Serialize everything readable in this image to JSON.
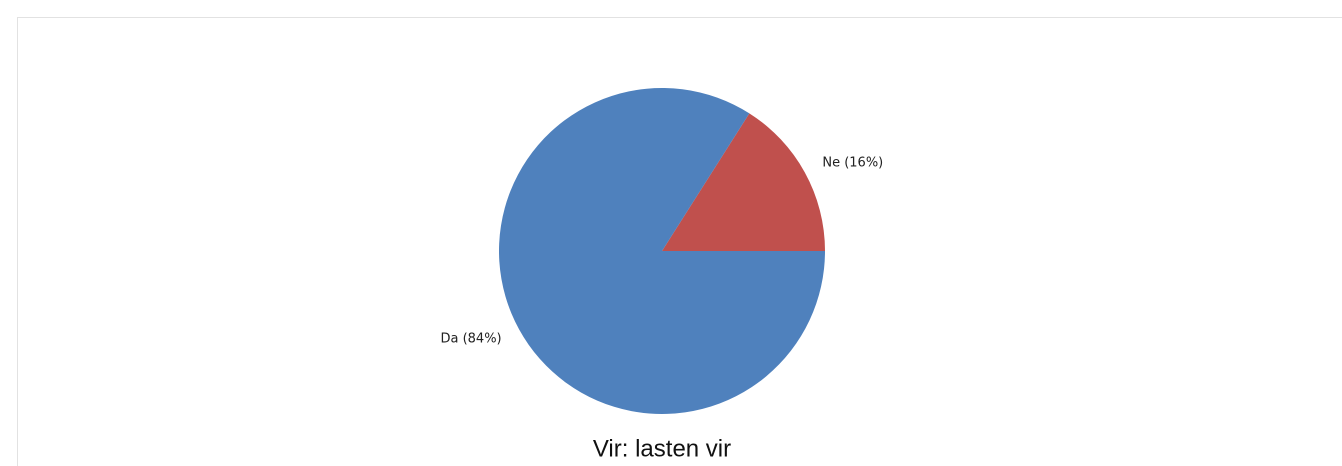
{
  "chart_data": {
    "type": "pie",
    "values": [
      16,
      84
    ],
    "value_labels": [
      "Ne (16%)",
      "Da (84%)"
    ],
    "colors": [
      "#c0504d",
      "#4f81bd"
    ],
    "caption": "Vir: lasten vir"
  }
}
